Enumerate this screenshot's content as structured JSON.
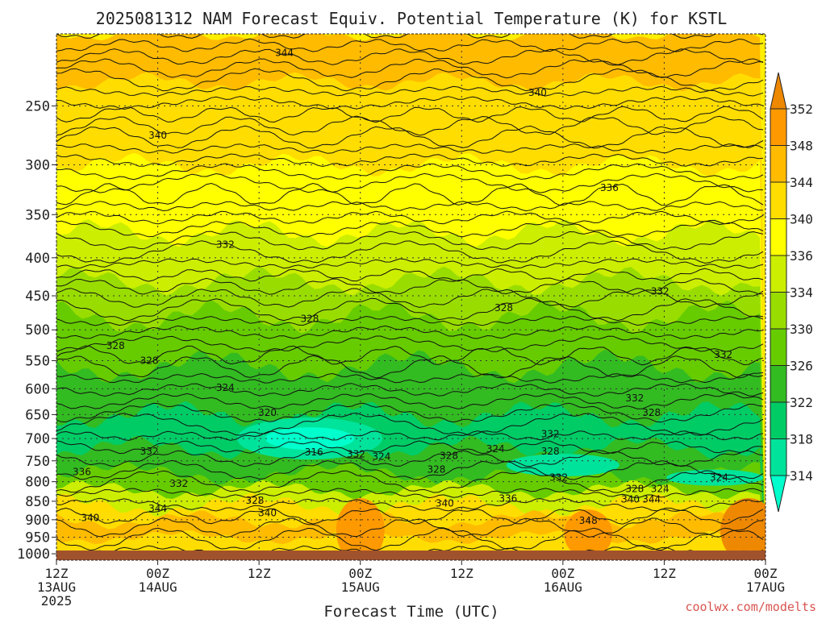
{
  "chart_data": {
    "type": "heatmap",
    "title": "2025081312 NAM Forecast Equiv. Potential Temperature (K) for KSTL",
    "xlabel": "Forecast Time (UTC)",
    "ylabel": "",
    "credit": "coolwx.com/modelts",
    "y_scale": "log",
    "y_reversed": true,
    "y_ticks": [
      250,
      300,
      350,
      400,
      450,
      500,
      550,
      600,
      650,
      700,
      750,
      800,
      850,
      900,
      950,
      1000
    ],
    "x_ticks": [
      {
        "hour": 0,
        "lines": [
          "12Z",
          "13AUG",
          "2025"
        ]
      },
      {
        "hour": 12,
        "lines": [
          "00Z",
          "14AUG"
        ]
      },
      {
        "hour": 24,
        "lines": [
          "12Z"
        ]
      },
      {
        "hour": 36,
        "lines": [
          "00Z",
          "15AUG"
        ]
      },
      {
        "hour": 48,
        "lines": [
          "12Z"
        ]
      },
      {
        "hour": 60,
        "lines": [
          "00Z",
          "16AUG"
        ]
      },
      {
        "hour": 72,
        "lines": [
          "12Z"
        ]
      },
      {
        "hour": 84,
        "lines": [
          "00Z",
          "17AUG"
        ]
      }
    ],
    "x_range": [
      0,
      84
    ],
    "y_range": [
      200,
      1020
    ],
    "ground_level_hpa": 990,
    "colorbar": {
      "levels": [
        314,
        318,
        322,
        326,
        330,
        334,
        336,
        340,
        344,
        348,
        352
      ],
      "colors": [
        "#00ffcc",
        "#00e39a",
        "#00cc66",
        "#33bb22",
        "#66cc00",
        "#99dd00",
        "#ccee00",
        "#ffff00",
        "#ffdd00",
        "#ffbb00",
        "#ff9900",
        "#ee8800"
      ],
      "ticks": [
        352,
        348,
        344,
        340,
        336,
        334,
        330,
        326,
        322,
        318,
        314
      ],
      "extend": "both"
    },
    "contour_labels": [
      {
        "text": "344",
        "hour": 27,
        "hpa": 212
      },
      {
        "text": "340",
        "hour": 57,
        "hpa": 240
      },
      {
        "text": "340",
        "hour": 12,
        "hpa": 274
      },
      {
        "text": "336",
        "hour": 65.5,
        "hpa": 322
      },
      {
        "text": "332",
        "hour": 20,
        "hpa": 384
      },
      {
        "text": "332",
        "hour": 71.5,
        "hpa": 444
      },
      {
        "text": "328",
        "hour": 30,
        "hpa": 483
      },
      {
        "text": "328",
        "hour": 53,
        "hpa": 467
      },
      {
        "text": "328",
        "hour": 7,
        "hpa": 525
      },
      {
        "text": "328",
        "hour": 11,
        "hpa": 550
      },
      {
        "text": "332",
        "hour": 79,
        "hpa": 540
      },
      {
        "text": "324",
        "hour": 20,
        "hpa": 598
      },
      {
        "text": "332",
        "hour": 68.5,
        "hpa": 618
      },
      {
        "text": "328",
        "hour": 70.5,
        "hpa": 646
      },
      {
        "text": "320",
        "hour": 25,
        "hpa": 646
      },
      {
        "text": "332",
        "hour": 58.5,
        "hpa": 690
      },
      {
        "text": "324",
        "hour": 52,
        "hpa": 723
      },
      {
        "text": "328",
        "hour": 58.5,
        "hpa": 728
      },
      {
        "text": "316",
        "hour": 30.5,
        "hpa": 730
      },
      {
        "text": "332",
        "hour": 35.5,
        "hpa": 735
      },
      {
        "text": "324",
        "hour": 38.5,
        "hpa": 740
      },
      {
        "text": "328",
        "hour": 46.5,
        "hpa": 738
      },
      {
        "text": "332",
        "hour": 11,
        "hpa": 728
      },
      {
        "text": "328",
        "hour": 45,
        "hpa": 770
      },
      {
        "text": "336",
        "hour": 3,
        "hpa": 776
      },
      {
        "text": "332",
        "hour": 59.5,
        "hpa": 790
      },
      {
        "text": "324",
        "hour": 78.5,
        "hpa": 790
      },
      {
        "text": "332",
        "hour": 14.5,
        "hpa": 805
      },
      {
        "text": "328",
        "hour": 68.5,
        "hpa": 818
      },
      {
        "text": "324",
        "hour": 71.5,
        "hpa": 818
      },
      {
        "text": "328",
        "hour": 23.5,
        "hpa": 848
      },
      {
        "text": "340",
        "hour": 68,
        "hpa": 845
      },
      {
        "text": "344",
        "hour": 70.5,
        "hpa": 845
      },
      {
        "text": "336",
        "hour": 53.5,
        "hpa": 843
      },
      {
        "text": "340",
        "hour": 46,
        "hpa": 855
      },
      {
        "text": "344",
        "hour": 12,
        "hpa": 870
      },
      {
        "text": "340",
        "hour": 25,
        "hpa": 882
      },
      {
        "text": "340",
        "hour": 4,
        "hpa": 895
      },
      {
        "text": "348",
        "hour": 63,
        "hpa": 903
      }
    ]
  }
}
